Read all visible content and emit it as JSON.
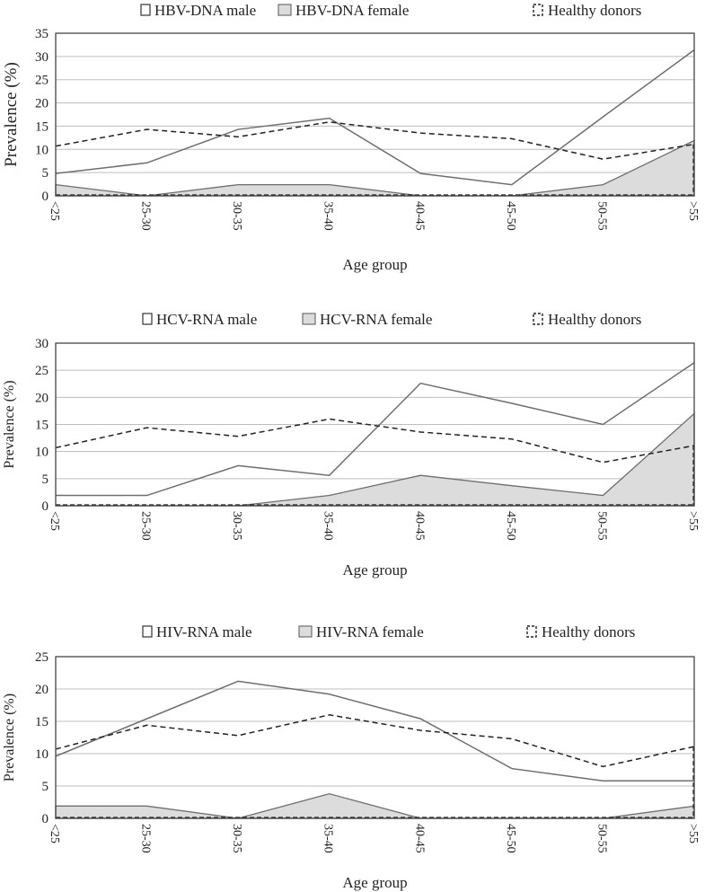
{
  "chart_data": [
    {
      "type": "area",
      "title": "",
      "xlabel": "Age group",
      "ylabel": "Prevalence (%)",
      "ylim": [
        0,
        35
      ],
      "yticks": [
        "0",
        "5",
        "10",
        "15",
        "20",
        "25",
        "30",
        "35"
      ],
      "categories": [
        "<25",
        "25-30",
        "30-35",
        "35-40",
        "40-45",
        "45-50",
        "50-55",
        ">55"
      ],
      "legend": [
        "HBV-DNA male",
        "HBV-DNA female",
        "Healthy donors"
      ],
      "series": [
        {
          "name": "HBV-DNA male",
          "style": "line",
          "values": [
            4.8,
            7.1,
            14.3,
            16.7,
            4.8,
            2.4,
            17.0,
            31.4
          ]
        },
        {
          "name": "HBV-DNA female",
          "style": "area",
          "values": [
            2.4,
            0,
            2.4,
            2.4,
            0,
            0,
            2.4,
            11.9
          ]
        },
        {
          "name": "Healthy donors",
          "style": "dashed",
          "values": [
            10.7,
            14.3,
            12.7,
            15.9,
            13.5,
            12.3,
            7.9,
            11.1
          ]
        }
      ]
    },
    {
      "type": "area",
      "title": "",
      "xlabel": "Age group",
      "ylabel": "Prevalence (%)",
      "ylim": [
        0,
        30
      ],
      "yticks": [
        "0",
        "5",
        "10",
        "15",
        "20",
        "25",
        "30"
      ],
      "categories": [
        "<25",
        "25-30",
        "30-35",
        "35-40",
        "40-45",
        "45-50",
        "50-55",
        ">55"
      ],
      "legend": [
        "HCV-RNA male",
        "HCV-RNA female",
        "Healthy donors"
      ],
      "series": [
        {
          "name": "HCV-RNA male",
          "style": "line",
          "values": [
            1.9,
            1.9,
            7.4,
            5.6,
            22.6,
            18.9,
            15.0,
            26.4
          ]
        },
        {
          "name": "HCV-RNA female",
          "style": "area",
          "values": [
            0,
            0,
            0,
            1.9,
            5.6,
            3.7,
            1.9,
            17.0
          ]
        },
        {
          "name": "Healthy donors",
          "style": "dashed",
          "values": [
            10.7,
            14.4,
            12.8,
            16.0,
            13.6,
            12.3,
            8.0,
            11.1
          ]
        }
      ]
    },
    {
      "type": "area",
      "title": "",
      "xlabel": "Age group",
      "ylabel": "Prevalence (%)",
      "ylim": [
        0,
        25
      ],
      "yticks": [
        "0",
        "5",
        "10",
        "15",
        "20",
        "25"
      ],
      "categories": [
        "<25",
        "25-30",
        "30-35",
        "35-40",
        "40-45",
        "45-50",
        "50-55",
        ">55"
      ],
      "legend": [
        "HIV-RNA male",
        "HIV-RNA female",
        "Healthy donors"
      ],
      "series": [
        {
          "name": "HIV-RNA male",
          "style": "line",
          "values": [
            9.6,
            15.4,
            21.2,
            19.2,
            15.4,
            7.7,
            5.8,
            5.8
          ]
        },
        {
          "name": "HIV-RNA female",
          "style": "area",
          "values": [
            1.9,
            1.9,
            0,
            3.8,
            0,
            0,
            0,
            1.9
          ]
        },
        {
          "name": "Healthy donors",
          "style": "dashed",
          "values": [
            10.7,
            14.4,
            12.8,
            16.0,
            13.6,
            12.3,
            8.0,
            11.1
          ]
        }
      ]
    }
  ],
  "colors": {
    "line": "#6e6e6e",
    "area_fill": "#dcdcdc",
    "dashed": "#222222",
    "grid": "#bdbdbd",
    "frame": "#444444"
  }
}
